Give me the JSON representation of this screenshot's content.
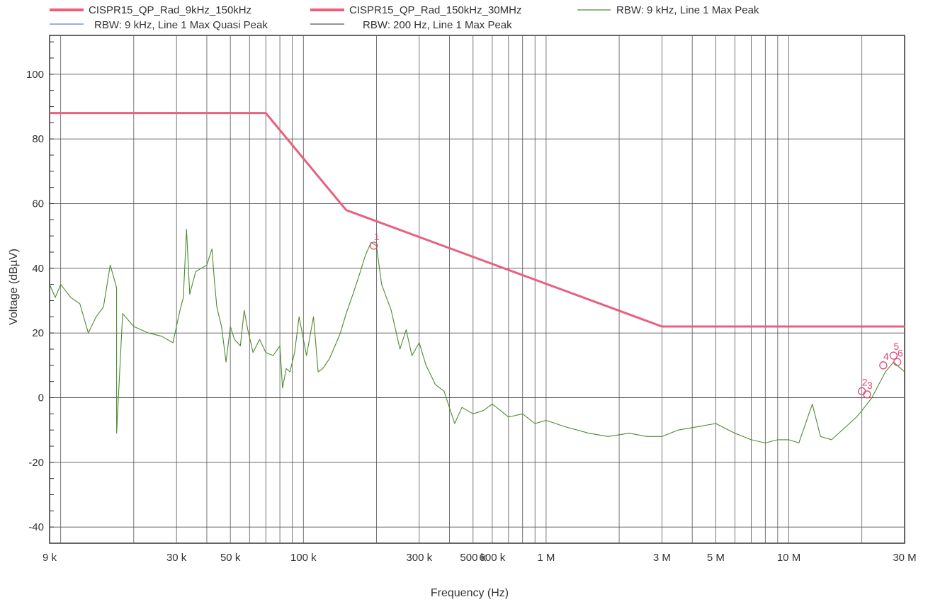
{
  "chart_data": {
    "type": "line",
    "title": "",
    "xlabel": "Frequency (Hz)",
    "ylabel": "Voltage (dBµV)",
    "x_scale": "log",
    "xlim": [
      9000,
      30000000
    ],
    "ylim": [
      -45,
      112
    ],
    "grid": true,
    "legend_position": "top",
    "x_ticks": [
      {
        "value": 9000,
        "label": "9 k"
      },
      {
        "value": 30000,
        "label": "30 k"
      },
      {
        "value": 50000,
        "label": "50 k"
      },
      {
        "value": 100000,
        "label": "100 k"
      },
      {
        "value": 300000,
        "label": "300 k"
      },
      {
        "value": 500000,
        "label": "500 k"
      },
      {
        "value": 600000,
        "label": "600 k"
      },
      {
        "value": 1000000,
        "label": "1 M"
      },
      {
        "value": 3000000,
        "label": "3 M"
      },
      {
        "value": 5000000,
        "label": "5 M"
      },
      {
        "value": 10000000,
        "label": "10 M"
      },
      {
        "value": 30000000,
        "label": "30 M"
      }
    ],
    "y_ticks": [
      {
        "value": 100,
        "label": "100"
      },
      {
        "value": 80,
        "label": "80"
      },
      {
        "value": 60,
        "label": "60"
      },
      {
        "value": 40,
        "label": "40"
      },
      {
        "value": 20,
        "label": "20"
      },
      {
        "value": 0,
        "label": "0"
      },
      {
        "value": -20,
        "label": "-20"
      },
      {
        "value": -40,
        "label": "-40"
      }
    ],
    "legend": [
      {
        "name": "CISPR15_QP_Rad_9kHz_150kHz",
        "color": "#e8607e",
        "width": 4
      },
      {
        "name": "CISPR15_QP_Rad_150kHz_30MHz",
        "color": "#e8607e",
        "width": 4
      },
      {
        "name": "RBW: 9 kHz, Line 1 Max Peak",
        "color": "#4e8a2e",
        "width": 1
      },
      {
        "name": "RBW: 9 kHz, Line 1 Max Quasi Peak",
        "color": "#5588cc",
        "width": 1
      },
      {
        "name": "RBW: 200 Hz, Line 1 Max Peak",
        "color": "#555555",
        "width": 1
      }
    ],
    "series": [
      {
        "name": "CISPR15_QP_Rad_9kHz_150kHz",
        "color": "#e8607e",
        "points": [
          [
            9000,
            88
          ],
          [
            70000,
            88
          ],
          [
            150000,
            58
          ]
        ]
      },
      {
        "name": "CISPR15_QP_Rad_150kHz_30MHz",
        "color": "#e8607e",
        "points": [
          [
            150000,
            58
          ],
          [
            3000000,
            22
          ],
          [
            30000000,
            22
          ]
        ]
      },
      {
        "name": "RBW: 9 kHz, Line 1 Max Peak",
        "color": "#4e8a2e",
        "points": [
          [
            9000,
            35
          ],
          [
            9500,
            31
          ],
          [
            10000,
            35
          ],
          [
            11000,
            31
          ],
          [
            12000,
            29
          ],
          [
            13000,
            20
          ],
          [
            14000,
            25
          ],
          [
            15000,
            28
          ],
          [
            16000,
            41
          ],
          [
            17000,
            34
          ],
          [
            18000,
            26
          ],
          [
            20000,
            22
          ],
          [
            23000,
            20
          ],
          [
            26000,
            19
          ],
          [
            29000,
            17
          ],
          [
            31000,
            27
          ],
          [
            32000,
            31
          ],
          [
            33000,
            52
          ],
          [
            34000,
            32
          ],
          [
            36000,
            39
          ],
          [
            38000,
            40
          ],
          [
            40000,
            41
          ],
          [
            42000,
            46
          ],
          [
            43000,
            36
          ],
          [
            44000,
            28
          ],
          [
            46000,
            22
          ],
          [
            48000,
            11
          ],
          [
            50000,
            22
          ],
          [
            52000,
            18
          ],
          [
            55000,
            16
          ],
          [
            57000,
            27
          ],
          [
            59000,
            21
          ],
          [
            62000,
            14
          ],
          [
            66000,
            18
          ],
          [
            70000,
            14
          ],
          [
            75000,
            13
          ],
          [
            80000,
            16
          ],
          [
            82000,
            3
          ],
          [
            85000,
            9
          ],
          [
            88000,
            8
          ],
          [
            92000,
            14
          ],
          [
            96000,
            25
          ],
          [
            100000,
            18
          ],
          [
            103000,
            13
          ],
          [
            107000,
            20
          ],
          [
            110000,
            25
          ],
          [
            115000,
            8
          ],
          [
            120000,
            9
          ],
          [
            128000,
            12
          ],
          [
            135000,
            16
          ],
          [
            142000,
            20
          ],
          [
            150000,
            26
          ],
          [
            160000,
            32
          ],
          [
            170000,
            38
          ],
          [
            180000,
            44
          ],
          [
            190000,
            48
          ],
          [
            200000,
            47
          ],
          [
            210000,
            35
          ],
          [
            230000,
            27
          ],
          [
            250000,
            15
          ],
          [
            265000,
            21
          ],
          [
            280000,
            13
          ],
          [
            300000,
            17
          ],
          [
            320000,
            10
          ],
          [
            350000,
            4
          ],
          [
            380000,
            2
          ],
          [
            420000,
            -8
          ],
          [
            450000,
            -3
          ],
          [
            500000,
            -5
          ],
          [
            550000,
            -4
          ],
          [
            600000,
            -2
          ],
          [
            650000,
            -4
          ],
          [
            700000,
            -6
          ],
          [
            800000,
            -5
          ],
          [
            900000,
            -8
          ],
          [
            1000000,
            -7
          ],
          [
            1200000,
            -9
          ],
          [
            1500000,
            -11
          ],
          [
            1800000,
            -12
          ],
          [
            2200000,
            -11
          ],
          [
            2600000,
            -12
          ],
          [
            3000000,
            -12
          ],
          [
            3500000,
            -10
          ],
          [
            4200000,
            -9
          ],
          [
            5000000,
            -8
          ],
          [
            6000000,
            -11
          ],
          [
            7000000,
            -13
          ],
          [
            8000000,
            -14
          ],
          [
            9000000,
            -13
          ],
          [
            10000000,
            -13
          ],
          [
            11000000,
            -14
          ],
          [
            12500000,
            -2
          ],
          [
            13500000,
            -12
          ],
          [
            15000000,
            -13
          ],
          [
            17000,
            -11
          ],
          [
            19000000,
            -6
          ],
          [
            20000000,
            -4
          ],
          [
            22000000,
            0
          ],
          [
            25000000,
            8
          ],
          [
            27000000,
            11
          ],
          [
            30000000,
            8
          ]
        ]
      }
    ],
    "markers": [
      {
        "label": "1",
        "x": 195000,
        "y": 47
      },
      {
        "label": "2",
        "x": 20000000,
        "y": 2
      },
      {
        "label": "3",
        "x": 21000000,
        "y": 1
      },
      {
        "label": "4",
        "x": 24500000,
        "y": 10
      },
      {
        "label": "5",
        "x": 27000000,
        "y": 13
      },
      {
        "label": "6",
        "x": 28000000,
        "y": 11
      }
    ]
  }
}
